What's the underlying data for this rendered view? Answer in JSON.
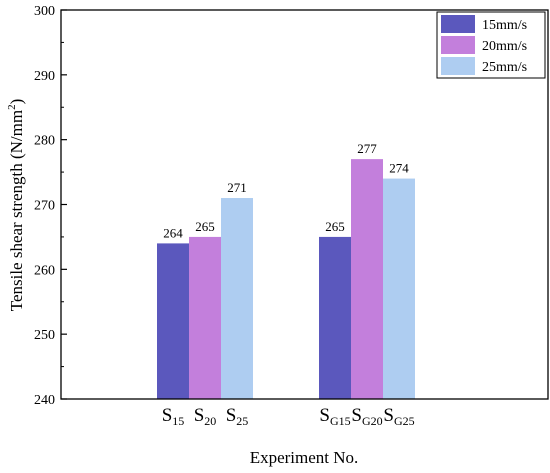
{
  "chart_data": {
    "type": "bar",
    "xlabel": "Experiment No.",
    "ylabel": "Tensile shear strength (N/mm²)",
    "ylabel_parts": {
      "main": "Tensile shear strength (N/mm",
      "sup": "2",
      "end": ")"
    },
    "ylim": [
      240,
      300
    ],
    "yticks": [
      240,
      250,
      260,
      270,
      280,
      290,
      300
    ],
    "grid": false,
    "legend_position": "top-right",
    "groups": [
      {
        "bars": [
          {
            "series": "15mm/s",
            "value": 264,
            "label_main": "S",
            "label_sub": "15"
          },
          {
            "series": "20mm/s",
            "value": 265,
            "label_main": "S",
            "label_sub": "20"
          },
          {
            "series": "25mm/s",
            "value": 271,
            "label_main": "S",
            "label_sub": "25"
          }
        ]
      },
      {
        "bars": [
          {
            "series": "15mm/s",
            "value": 265,
            "label_main": "S",
            "label_sub": "G15"
          },
          {
            "series": "20mm/s",
            "value": 277,
            "label_main": "S",
            "label_sub": "G20"
          },
          {
            "series": "25mm/s",
            "value": 274,
            "label_main": "S",
            "label_sub": "G25"
          }
        ]
      }
    ],
    "series": [
      {
        "name": "15mm/s",
        "color": "#5b58bd",
        "values": [
          264,
          265
        ]
      },
      {
        "name": "20mm/s",
        "color": "#c37fdc",
        "values": [
          265,
          277
        ]
      },
      {
        "name": "25mm/s",
        "color": "#aecdf1",
        "values": [
          271,
          274
        ]
      }
    ]
  }
}
